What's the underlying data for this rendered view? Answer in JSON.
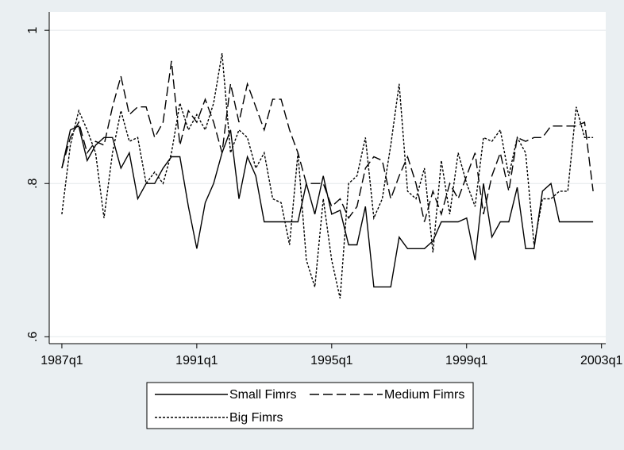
{
  "chart_data": {
    "type": "line",
    "x": [
      108,
      109,
      110,
      111,
      112,
      113,
      114,
      115,
      116,
      117,
      118,
      119,
      120,
      121,
      122,
      123,
      124,
      125,
      126,
      127,
      128,
      129,
      130,
      131,
      132,
      133,
      134,
      135,
      136,
      137,
      138,
      139,
      140,
      141,
      142,
      143,
      144,
      145,
      146,
      147,
      148,
      149,
      150,
      151,
      152,
      153,
      154,
      155,
      156,
      157,
      158,
      159,
      160,
      161,
      162,
      163,
      164,
      165,
      166,
      167,
      168,
      169,
      170,
      171
    ],
    "series": [
      {
        "name": "Small Fimrs",
        "color": "#000000",
        "dash": "solid",
        "values": [
          0.82,
          0.87,
          0.875,
          0.83,
          0.85,
          0.86,
          0.86,
          0.82,
          0.84,
          0.78,
          0.8,
          0.8,
          0.82,
          0.835,
          0.835,
          0.77,
          0.715,
          0.775,
          0.8,
          0.84,
          0.87,
          0.78,
          0.835,
          0.81,
          0.75,
          0.75,
          0.75,
          0.75,
          0.75,
          0.8,
          0.76,
          0.81,
          0.76,
          0.765,
          0.72,
          0.72,
          0.77,
          0.665,
          0.665,
          0.665,
          0.73,
          0.715,
          0.715,
          0.715,
          0.725,
          0.75,
          0.75,
          0.75,
          0.755,
          0.7,
          0.8,
          0.73,
          0.75,
          0.75,
          0.795,
          0.715,
          0.715,
          0.79,
          0.8,
          0.75,
          0.75,
          0.75,
          0.75,
          0.75
        ]
      },
      {
        "name": "Medium Fimrs",
        "color": "#000000",
        "dash": "dashed",
        "values": [
          0.82,
          0.86,
          0.88,
          0.84,
          0.855,
          0.85,
          0.9,
          0.94,
          0.89,
          0.9,
          0.9,
          0.86,
          0.88,
          0.96,
          0.85,
          0.895,
          0.88,
          0.91,
          0.88,
          0.84,
          0.93,
          0.88,
          0.93,
          0.9,
          0.87,
          0.91,
          0.91,
          0.87,
          0.84,
          0.8,
          0.8,
          0.8,
          0.77,
          0.78,
          0.755,
          0.77,
          0.82,
          0.835,
          0.83,
          0.78,
          0.81,
          0.835,
          0.8,
          0.75,
          0.79,
          0.76,
          0.8,
          0.78,
          0.81,
          0.84,
          0.76,
          0.81,
          0.84,
          0.79,
          0.86,
          0.855,
          0.86,
          0.86,
          0.875,
          0.875,
          0.875,
          0.875,
          0.88,
          0.79
        ]
      },
      {
        "name": "Big Fimrs",
        "color": "#000000",
        "dash": "dotted",
        "values": [
          0.76,
          0.85,
          0.895,
          0.87,
          0.84,
          0.755,
          0.84,
          0.895,
          0.855,
          0.86,
          0.8,
          0.815,
          0.8,
          0.84,
          0.905,
          0.87,
          0.89,
          0.87,
          0.905,
          0.97,
          0.84,
          0.87,
          0.86,
          0.82,
          0.84,
          0.78,
          0.775,
          0.72,
          0.84,
          0.7,
          0.665,
          0.78,
          0.7,
          0.65,
          0.8,
          0.81,
          0.86,
          0.755,
          0.78,
          0.85,
          0.93,
          0.79,
          0.78,
          0.82,
          0.71,
          0.83,
          0.76,
          0.84,
          0.8,
          0.77,
          0.86,
          0.855,
          0.87,
          0.81,
          0.86,
          0.84,
          0.72,
          0.78,
          0.78,
          0.79,
          0.79,
          0.9,
          0.86,
          0.86
        ]
      }
    ],
    "xlim": [
      106.5,
      172.5
    ],
    "xticks": [
      {
        "value": 108,
        "label": "1987q1"
      },
      {
        "value": 124,
        "label": "1991q1"
      },
      {
        "value": 140,
        "label": "1995q1"
      },
      {
        "value": 156,
        "label": "1999q1"
      },
      {
        "value": 172,
        "label": "2003q1"
      }
    ],
    "ylim": [
      0.591,
      1.024
    ],
    "yticks": [
      {
        "value": 0.6,
        "label": ".6"
      },
      {
        "value": 0.8,
        "label": ".8"
      },
      1
    ],
    "grid": true,
    "legend": "bottom"
  }
}
